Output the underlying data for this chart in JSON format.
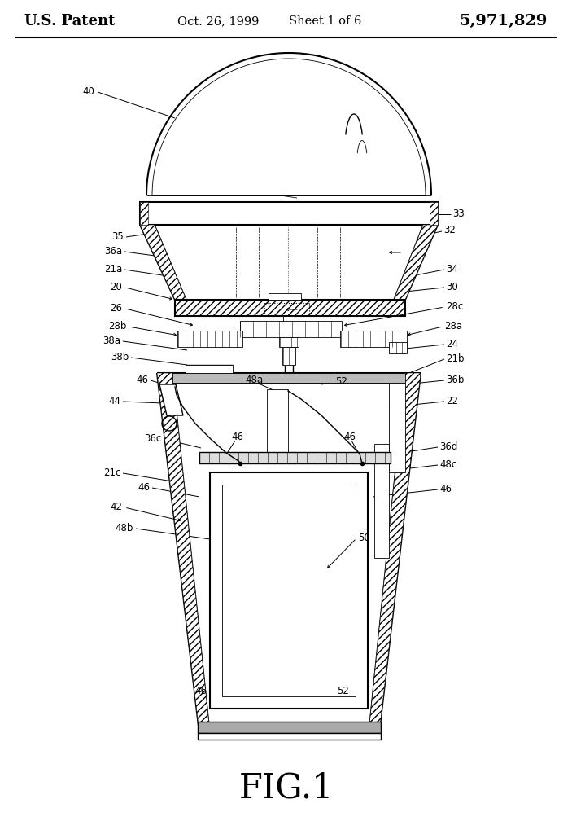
{
  "title_left": "U.S. Patent",
  "title_mid": "Oct. 26, 1999",
  "title_mid2": "Sheet 1 of 6",
  "title_right": "5,971,829",
  "fig_label": "FIG.1",
  "bg_color": "#ffffff"
}
